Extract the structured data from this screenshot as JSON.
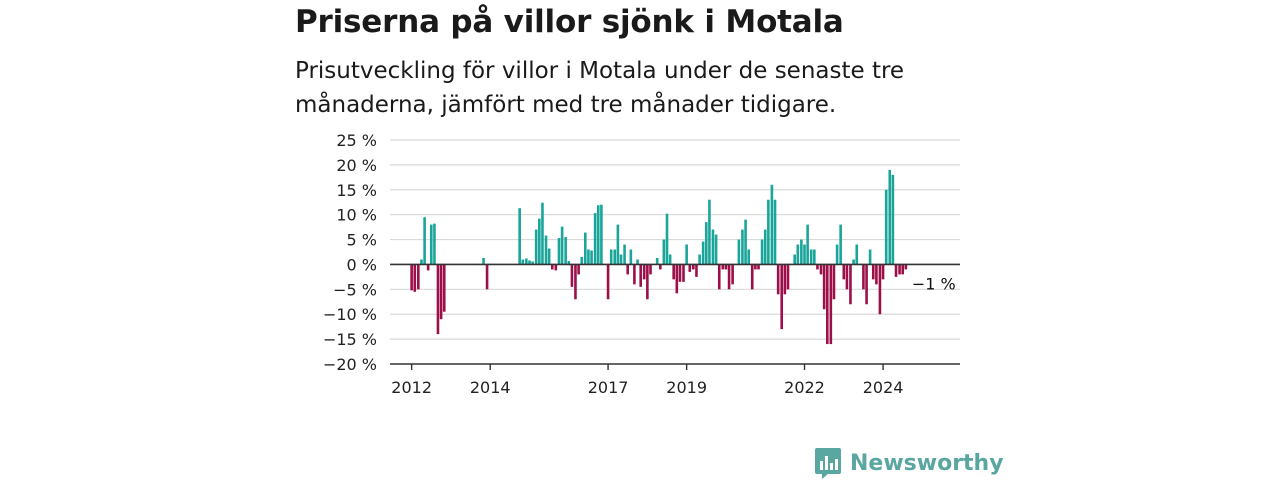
{
  "title": "Priserna på villor sjönk i Motala",
  "subtitle": "Prisutveckling för villor i Motala under de senaste tre månaderna, jämfört med tre månader tidigare.",
  "brand": "Newsworthy",
  "colors": {
    "positive": "#1aa59a",
    "negative": "#9c0f49",
    "grid": "#d9d9d9",
    "axis": "#333333",
    "brand": "#5aa6a0"
  },
  "chart_data": {
    "type": "bar",
    "ylim": [
      -20,
      25
    ],
    "yticks": [
      -20,
      -15,
      -10,
      -5,
      0,
      5,
      10,
      15,
      20,
      25
    ],
    "ytick_labels": [
      "−20 %",
      "−15 %",
      "−10 %",
      "−5 %",
      "0 %",
      "5 %",
      "10 %",
      "15 %",
      "20 %",
      "25 %"
    ],
    "xtick_labels": [
      {
        "label": "2012",
        "at": 2012.0
      },
      {
        "label": "2014",
        "at": 2014.0
      },
      {
        "label": "2017",
        "at": 2017.0
      },
      {
        "label": "2019",
        "at": 2019.0
      },
      {
        "label": "2022",
        "at": 2022.0
      },
      {
        "label": "2024",
        "at": 2024.0
      }
    ],
    "x_range": [
      2011.5,
      2025.5
    ],
    "end_label": "−1 %",
    "grid": true,
    "points": [
      [
        2012.0,
        -5.2
      ],
      [
        2012.08,
        -5.5
      ],
      [
        2012.17,
        -5.0
      ],
      [
        2012.25,
        1.0
      ],
      [
        2012.33,
        9.5
      ],
      [
        2012.42,
        -1.2
      ],
      [
        2012.5,
        8.0
      ],
      [
        2012.58,
        8.2
      ],
      [
        2012.67,
        -14.0
      ],
      [
        2012.75,
        -11.0
      ],
      [
        2012.83,
        -9.5
      ],
      [
        2013.83,
        1.3
      ],
      [
        2013.92,
        -5.0
      ],
      [
        2014.75,
        11.3
      ],
      [
        2014.83,
        1.0
      ],
      [
        2014.92,
        1.2
      ],
      [
        2015.0,
        0.8
      ],
      [
        2015.08,
        0.6
      ],
      [
        2015.17,
        7.0
      ],
      [
        2015.25,
        9.2
      ],
      [
        2015.33,
        12.4
      ],
      [
        2015.42,
        5.8
      ],
      [
        2015.5,
        3.2
      ],
      [
        2015.58,
        -1.0
      ],
      [
        2015.67,
        -1.2
      ],
      [
        2015.75,
        5.3
      ],
      [
        2015.83,
        7.6
      ],
      [
        2015.92,
        5.5
      ],
      [
        2016.0,
        0.7
      ],
      [
        2016.08,
        -4.5
      ],
      [
        2016.17,
        -7.0
      ],
      [
        2016.25,
        -2.0
      ],
      [
        2016.33,
        1.5
      ],
      [
        2016.42,
        6.4
      ],
      [
        2016.5,
        3.0
      ],
      [
        2016.58,
        2.8
      ],
      [
        2016.67,
        10.3
      ],
      [
        2016.75,
        11.9
      ],
      [
        2016.83,
        12.0
      ],
      [
        2017.0,
        -7.0
      ],
      [
        2017.08,
        3.0
      ],
      [
        2017.17,
        3.0
      ],
      [
        2017.25,
        8.0
      ],
      [
        2017.33,
        2.0
      ],
      [
        2017.42,
        4.0
      ],
      [
        2017.5,
        -2.0
      ],
      [
        2017.58,
        3.0
      ],
      [
        2017.67,
        -4.0
      ],
      [
        2017.75,
        1.0
      ],
      [
        2017.83,
        -4.5
      ],
      [
        2017.92,
        -3.0
      ],
      [
        2018.0,
        -7.0
      ],
      [
        2018.08,
        -2.0
      ],
      [
        2018.25,
        1.3
      ],
      [
        2018.33,
        -1.0
      ],
      [
        2018.42,
        5.0
      ],
      [
        2018.5,
        10.2
      ],
      [
        2018.58,
        2.0
      ],
      [
        2018.67,
        -3.0
      ],
      [
        2018.75,
        -5.8
      ],
      [
        2018.83,
        -3.5
      ],
      [
        2018.92,
        -3.5
      ],
      [
        2019.0,
        4.0
      ],
      [
        2019.08,
        -1.5
      ],
      [
        2019.17,
        -1.0
      ],
      [
        2019.25,
        -2.5
      ],
      [
        2019.33,
        2.0
      ],
      [
        2019.42,
        4.6
      ],
      [
        2019.5,
        8.5
      ],
      [
        2019.58,
        13.0
      ],
      [
        2019.67,
        7.0
      ],
      [
        2019.75,
        6.0
      ],
      [
        2019.83,
        -5.0
      ],
      [
        2019.92,
        -1.0
      ],
      [
        2020.0,
        -1.0
      ],
      [
        2020.08,
        -5.0
      ],
      [
        2020.17,
        -4.0
      ],
      [
        2020.33,
        5.0
      ],
      [
        2020.42,
        7.0
      ],
      [
        2020.5,
        9.0
      ],
      [
        2020.58,
        3.0
      ],
      [
        2020.67,
        -5.0
      ],
      [
        2020.75,
        -1.0
      ],
      [
        2020.83,
        -1.0
      ],
      [
        2020.92,
        5.0
      ],
      [
        2021.0,
        7.0
      ],
      [
        2021.08,
        13.0
      ],
      [
        2021.17,
        16.0
      ],
      [
        2021.25,
        13.0
      ],
      [
        2021.33,
        -6.0
      ],
      [
        2021.42,
        -13.0
      ],
      [
        2021.5,
        -6.0
      ],
      [
        2021.58,
        -5.0
      ],
      [
        2021.75,
        2.0
      ],
      [
        2021.83,
        4.0
      ],
      [
        2021.92,
        5.0
      ],
      [
        2022.0,
        4.0
      ],
      [
        2022.08,
        8.0
      ],
      [
        2022.17,
        3.0
      ],
      [
        2022.25,
        3.0
      ],
      [
        2022.33,
        -1.0
      ],
      [
        2022.42,
        -2.0
      ],
      [
        2022.5,
        -9.0
      ],
      [
        2022.58,
        -16.0
      ],
      [
        2022.67,
        -16.0
      ],
      [
        2022.75,
        -7.0
      ],
      [
        2022.83,
        4.0
      ],
      [
        2022.92,
        8.0
      ],
      [
        2023.0,
        -3.0
      ],
      [
        2023.08,
        -5.0
      ],
      [
        2023.17,
        -8.0
      ],
      [
        2023.25,
        1.0
      ],
      [
        2023.33,
        4.0
      ],
      [
        2023.5,
        -5.0
      ],
      [
        2023.58,
        -8.0
      ],
      [
        2023.67,
        3.0
      ],
      [
        2023.75,
        -3.0
      ],
      [
        2023.83,
        -4.0
      ],
      [
        2023.92,
        -10.0
      ],
      [
        2024.0,
        -3.0
      ],
      [
        2024.08,
        15.0
      ],
      [
        2024.17,
        19.0
      ],
      [
        2024.25,
        18.0
      ],
      [
        2024.33,
        -2.5
      ],
      [
        2024.42,
        -2.0
      ],
      [
        2024.5,
        -2.0
      ],
      [
        2024.58,
        -1.0
      ]
    ]
  }
}
